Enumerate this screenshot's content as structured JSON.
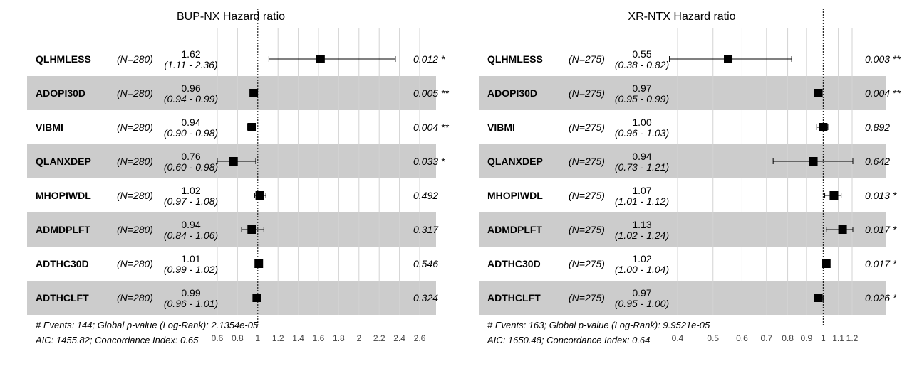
{
  "chart_data": [
    {
      "type": "forest",
      "title": "BUP-NX Hazard ratio",
      "xlim": [
        0.6,
        2.6
      ],
      "ticks": [
        0.6,
        0.8,
        1,
        1.2,
        1.4,
        1.6,
        1.8,
        2,
        2.2,
        2.4,
        2.6
      ],
      "tick_labels": [
        "0.6",
        "0.8",
        "1",
        "1.2",
        "1.4",
        "1.6",
        "1.8",
        "2",
        "2.2",
        "2.4",
        "2.6"
      ],
      "reference": 1,
      "rows": [
        {
          "variable": "QLHMLESS",
          "n": "(N=280)",
          "hr": 1.62,
          "lo": 1.11,
          "hi": 2.36,
          "hr_label": "1.62",
          "ci_label": "(1.11 - 2.36)",
          "p_label": "0.012 *"
        },
        {
          "variable": "ADOPI30D",
          "n": "(N=280)",
          "hr": 0.96,
          "lo": 0.94,
          "hi": 0.99,
          "hr_label": "0.96",
          "ci_label": "(0.94 - 0.99)",
          "p_label": "0.005 **"
        },
        {
          "variable": "VIBMI",
          "n": "(N=280)",
          "hr": 0.94,
          "lo": 0.9,
          "hi": 0.98,
          "hr_label": "0.94",
          "ci_label": "(0.90 - 0.98)",
          "p_label": "0.004 **"
        },
        {
          "variable": "QLANXDEP",
          "n": "(N=280)",
          "hr": 0.76,
          "lo": 0.6,
          "hi": 0.98,
          "hr_label": "0.76",
          "ci_label": "(0.60 - 0.98)",
          "p_label": "0.033 *"
        },
        {
          "variable": "MHOPIWDL",
          "n": "(N=280)",
          "hr": 1.02,
          "lo": 0.97,
          "hi": 1.08,
          "hr_label": "1.02",
          "ci_label": "(0.97 - 1.08)",
          "p_label": "0.492"
        },
        {
          "variable": "ADMDPLFT",
          "n": "(N=280)",
          "hr": 0.94,
          "lo": 0.84,
          "hi": 1.06,
          "hr_label": "0.94",
          "ci_label": "(0.84 - 1.06)",
          "p_label": "0.317"
        },
        {
          "variable": "ADTHC30D",
          "n": "(N=280)",
          "hr": 1.01,
          "lo": 0.99,
          "hi": 1.02,
          "hr_label": "1.01",
          "ci_label": "(0.99 - 1.02)",
          "p_label": "0.546"
        },
        {
          "variable": "ADTHCLFT",
          "n": "(N=280)",
          "hr": 0.99,
          "lo": 0.96,
          "hi": 1.01,
          "hr_label": "0.99",
          "ci_label": "(0.96 - 1.01)",
          "p_label": "0.324"
        }
      ],
      "footer_line1": "# Events: 144; Global p-value (Log-Rank): 2.1354e-05",
      "footer_line2": "AIC: 1455.82; Concordance Index: 0.65"
    },
    {
      "type": "forest",
      "title": "XR-NTX Hazard ratio",
      "xlim": [
        0.4,
        1.2
      ],
      "log_scale": true,
      "ticks": [
        0.4,
        0.5,
        0.6,
        0.7,
        0.8,
        0.9,
        1,
        1.1,
        1.2
      ],
      "tick_labels": [
        "0.4",
        "0.5",
        "0.6",
        "0.7",
        "0.8",
        "0.9",
        "1",
        "1.1",
        "1.2"
      ],
      "reference": 1,
      "rows": [
        {
          "variable": "QLHMLESS",
          "n": "(N=275)",
          "hr": 0.55,
          "lo": 0.38,
          "hi": 0.82,
          "hr_label": "0.55",
          "ci_label": "(0.38 - 0.82)",
          "p_label": "0.003 **"
        },
        {
          "variable": "ADOPI30D",
          "n": "(N=275)",
          "hr": 0.97,
          "lo": 0.95,
          "hi": 0.99,
          "hr_label": "0.97",
          "ci_label": "(0.95 - 0.99)",
          "p_label": "0.004 **"
        },
        {
          "variable": "VIBMI",
          "n": "(N=275)",
          "hr": 1.0,
          "lo": 0.96,
          "hi": 1.03,
          "hr_label": "1.00",
          "ci_label": "(0.96 - 1.03)",
          "p_label": "0.892"
        },
        {
          "variable": "QLANXDEP",
          "n": "(N=275)",
          "hr": 0.94,
          "lo": 0.73,
          "hi": 1.21,
          "hr_label": "0.94",
          "ci_label": "(0.73 - 1.21)",
          "p_label": "0.642"
        },
        {
          "variable": "MHOPIWDL",
          "n": "(N=275)",
          "hr": 1.07,
          "lo": 1.01,
          "hi": 1.12,
          "hr_label": "1.07",
          "ci_label": "(1.01 - 1.12)",
          "p_label": "0.013 *"
        },
        {
          "variable": "ADMDPLFT",
          "n": "(N=275)",
          "hr": 1.13,
          "lo": 1.02,
          "hi": 1.24,
          "hr_label": "1.13",
          "ci_label": "(1.02 - 1.24)",
          "p_label": "0.017 *"
        },
        {
          "variable": "ADTHC30D",
          "n": "(N=275)",
          "hr": 1.02,
          "lo": 1.0,
          "hi": 1.04,
          "hr_label": "1.02",
          "ci_label": "(1.00 - 1.04)",
          "p_label": "0.017 *"
        },
        {
          "variable": "ADTHCLFT",
          "n": "(N=275)",
          "hr": 0.97,
          "lo": 0.95,
          "hi": 1.0,
          "hr_label": "0.97",
          "ci_label": "(0.95 - 1.00)",
          "p_label": "0.026 *"
        }
      ],
      "footer_line1": "# Events: 163; Global p-value (Log-Rank): 9.9521e-05",
      "footer_line2": "AIC: 1650.48; Concordance Index: 0.64"
    }
  ],
  "colors": {
    "band": "#cccccc",
    "grid": "#d3d3d3",
    "marker": "#000000"
  }
}
